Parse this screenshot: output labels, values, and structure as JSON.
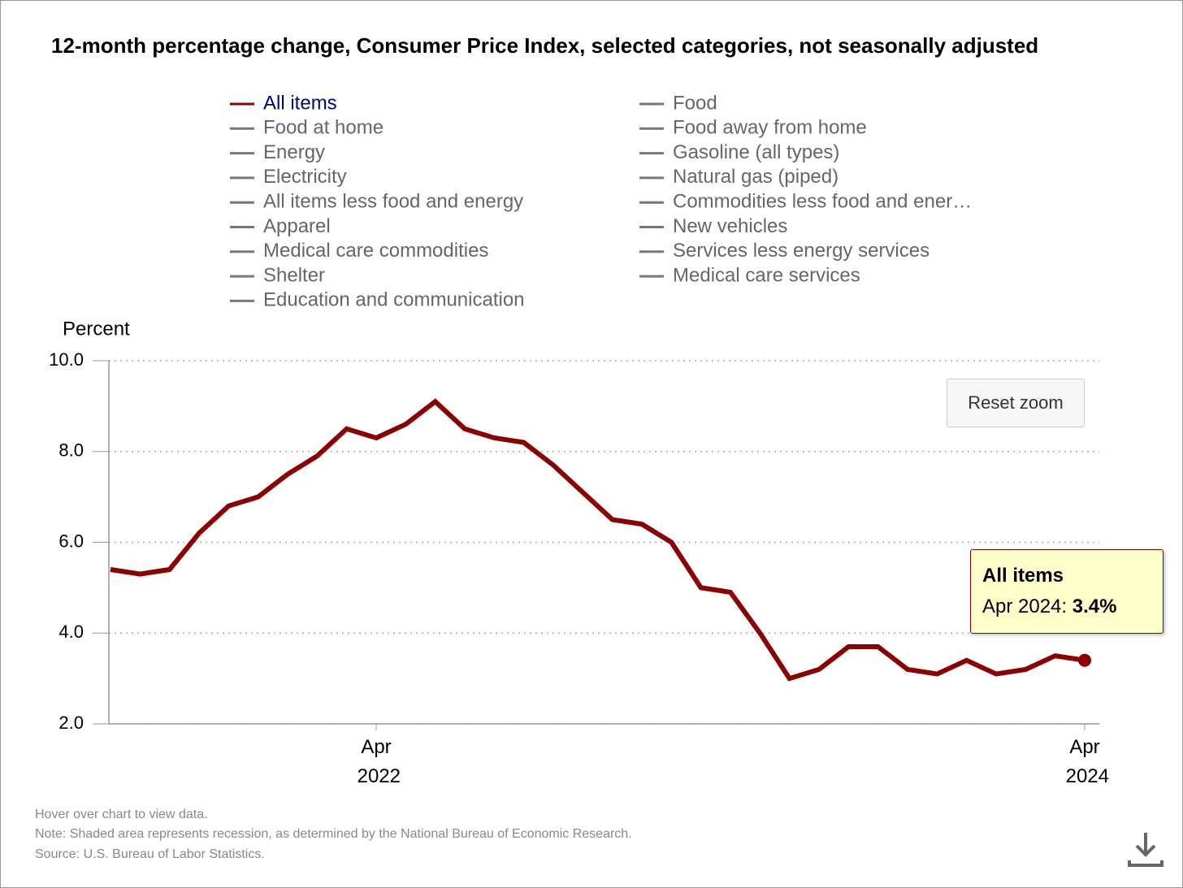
{
  "chart_data": {
    "type": "line",
    "title": "12-month percentage change, Consumer Price Index, selected categories, not seasonally adjusted",
    "y_axis_title": "Percent",
    "x": [
      "2021-07",
      "2021-08",
      "2021-09",
      "2021-10",
      "2021-11",
      "2021-12",
      "2022-01",
      "2022-02",
      "2022-03",
      "2022-04",
      "2022-05",
      "2022-06",
      "2022-07",
      "2022-08",
      "2022-09",
      "2022-10",
      "2022-11",
      "2022-12",
      "2023-01",
      "2023-02",
      "2023-03",
      "2023-04",
      "2023-05",
      "2023-06",
      "2023-07",
      "2023-08",
      "2023-09",
      "2023-10",
      "2023-11",
      "2023-12",
      "2024-01",
      "2024-02",
      "2024-03",
      "2024-04"
    ],
    "series": [
      {
        "name": "All items",
        "color": "#8b0000",
        "values": [
          5.4,
          5.3,
          5.4,
          6.2,
          6.8,
          7.0,
          7.5,
          7.9,
          8.5,
          8.3,
          8.6,
          9.1,
          8.5,
          8.3,
          8.2,
          7.7,
          7.1,
          6.5,
          6.4,
          6.0,
          5.0,
          4.9,
          4.0,
          3.0,
          3.2,
          3.7,
          3.7,
          3.2,
          3.1,
          3.4,
          3.1,
          3.2,
          3.5,
          3.4
        ]
      }
    ],
    "inactive_legend_items": [
      "Food",
      "Food at home",
      "Food away from home",
      "Energy",
      "Gasoline (all types)",
      "Electricity",
      "Natural gas (piped)",
      "All items less food and energy",
      "Commodities less food and ener…",
      "Apparel",
      "New vehicles",
      "Medical care commodities",
      "Services less energy services",
      "Shelter",
      "Medical care services",
      "Education and communication"
    ],
    "ylim": [
      2,
      10
    ],
    "yticks": [
      {
        "value": 2,
        "label": "2.0"
      },
      {
        "value": 4,
        "label": "4.0"
      },
      {
        "value": 6,
        "label": "6.0"
      },
      {
        "value": 8,
        "label": "8.0"
      },
      {
        "value": 10,
        "label": "10.0"
      }
    ],
    "xticks": [
      {
        "value": "2022-04",
        "label": "Apr 2022"
      },
      {
        "value": "2024-04",
        "label": "Apr 2024"
      }
    ],
    "grid": true,
    "tooltip": {
      "title": "All items",
      "x_label": "Apr 2024:",
      "value_label": "3.4%"
    },
    "reset_button": "Reset zoom",
    "footnotes": [
      "Hover over chart to view data.",
      "Note: Shaded area represents recession, as determined by the National Bureau of Economic Research.",
      "Source: U.S. Bureau of Labor Statistics."
    ]
  }
}
